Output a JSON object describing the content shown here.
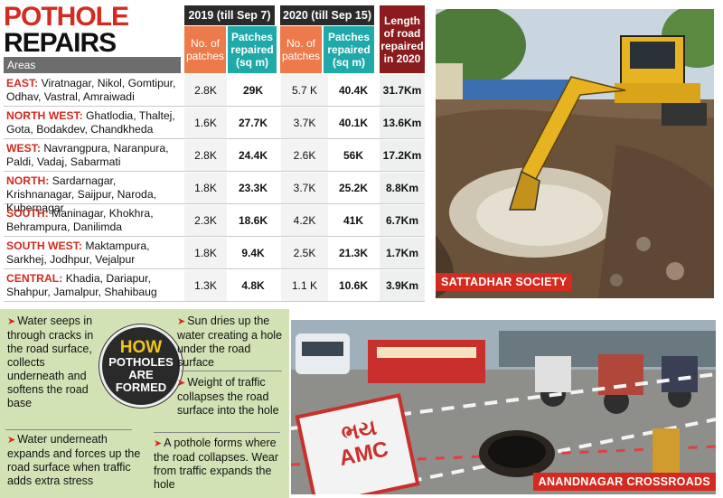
{
  "title": {
    "line1": "POTHOLE",
    "line2": "REPAIRS"
  },
  "areas_label": "Areas",
  "headers": {
    "group_2019": "2019 (till Sep 7)",
    "group_2020": "2020 (till Sep 15)",
    "patches": "No. of patches",
    "repaired": "Patches repaired (sq m)",
    "length": "Length of road repaired in 2020"
  },
  "rows": [
    {
      "region": "EAST:",
      "areas": "Viratnagar, Nikol, Gomtipur, Odhav, Vastral, Amraiwadi",
      "p2019": "2.8K",
      "r2019": "29K",
      "p2020": "5.7 K",
      "r2020": "40.4K",
      "length": "31.7Km"
    },
    {
      "region": "NORTH WEST:",
      "areas": "Ghatlodia, Thaltej, Gota, Bodakdev, Chandkheda",
      "p2019": "1.6K",
      "r2019": "27.7K",
      "p2020": "3.7K",
      "r2020": "40.1K",
      "length": "13.6Km"
    },
    {
      "region": "WEST:",
      "areas": "Navrangpura, Naranpura, Paldi, Vadaj, Sabarmati",
      "p2019": "2.8K",
      "r2019": "24.4K",
      "p2020": "2.6K",
      "r2020": "56K",
      "length": "17.2Km"
    },
    {
      "region": "NORTH:",
      "areas": "Sardarnagar, Krishnanagar, Saijpur, Naroda, Kubernagar",
      "p2019": "1.8K",
      "r2019": "23.3K",
      "p2020": "3.7K",
      "r2020": "25.2K",
      "length": "8.8Km"
    },
    {
      "region": "SOUTH:",
      "areas": "Maninagar, Khokhra, Behrampura, Danilimda",
      "p2019": "2.3K",
      "r2019": "18.6K",
      "p2020": "4.2K",
      "r2020": "41K",
      "length": "6.7Km"
    },
    {
      "region": "SOUTH WEST:",
      "areas": "Maktampura, Sarkhej, Jodhpur, Vejalpur",
      "p2019": "1.8K",
      "r2019": "9.4K",
      "p2020": "2.5K",
      "r2020": "21.3K",
      "length": "1.7Km"
    },
    {
      "region": "CENTRAL:",
      "areas": "Khadia, Dariapur, Shahpur, Jamalpur, Shahibaug",
      "p2019": "1.3K",
      "r2019": "4.8K",
      "p2020": "1.1 K",
      "r2020": "10.6K",
      "length": "3.9Km"
    }
  ],
  "photo1_caption": "SATTADHAR SOCIETY",
  "photo2_caption": "ANANDNAGAR CROSSROADS",
  "sign_text": {
    "top": "ભય",
    "bottom": "AMC"
  },
  "how": {
    "line1": "HOW",
    "line2": "POTHOLES",
    "line3": "ARE",
    "line4": "FORMED"
  },
  "steps": {
    "s1": "Water seeps in through cracks in the road surface, collects underneath and softens the road base",
    "s2": "Water underneath expands and forces up the road surface when traffic adds extra stress",
    "s3": "Sun dries up the water creating a hole under the road surface",
    "s4": "Weight of traffic collapses the road surface into the hole",
    "s5": "A pothole forms where the road collapses. Wear from traffic expands the hole"
  },
  "colors": {
    "red": "#d42a1f",
    "orange": "#ec7a4a",
    "teal": "#1fa9a8",
    "maroon": "#8a1b1e",
    "green_panel": "#d3e2b4"
  }
}
